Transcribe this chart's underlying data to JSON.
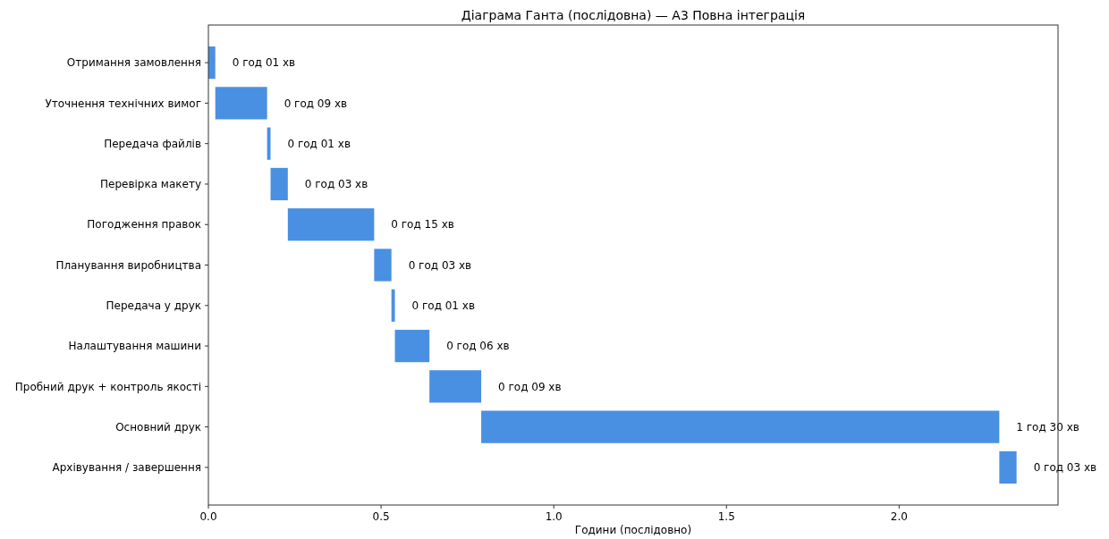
{
  "chart_data": {
    "type": "bar",
    "orientation": "horizontal",
    "title": "Діаграма Ганта (послідовна) — A3 Повна інтеграція",
    "xlabel": "Години (послідовно)",
    "categories": [
      "Отримання замовлення",
      "Уточнення технічних вимог",
      "Передача файлів",
      "Перевірка макету",
      "Погодження правок",
      "Планування виробництва",
      "Передача у друк",
      "Налаштування машини",
      "Пробний друк + контроль якості",
      "Основний друк",
      "Архівування / завершення"
    ],
    "base": [
      0,
      0.02,
      0.17,
      0.18,
      0.23,
      0.48,
      0.53,
      0.54,
      0.64,
      0.79,
      2.29
    ],
    "values": [
      0.02,
      0.15,
      0.01,
      0.05,
      0.25,
      0.05,
      0.01,
      0.1,
      0.15,
      1.5,
      0.05
    ],
    "value_labels": [
      "0 год 01 хв",
      "0 год 09 хв",
      "0 год 01 хв",
      "0 год 03 хв",
      "0 год 15 хв",
      "0 год 03 хв",
      "0 год 01 хв",
      "0 год 06 хв",
      "0 год 09 хв",
      "1 год 30 хв",
      "0 год 03 хв"
    ],
    "color": "#4a90e2",
    "xlim": [
      0,
      2.46
    ],
    "xticks": [
      {
        "value": 0,
        "label": "0.0"
      },
      {
        "value": 0.5,
        "label": "0.5"
      },
      {
        "value": 1,
        "label": "1.0"
      },
      {
        "value": 1.5,
        "label": "1.5"
      },
      {
        "value": 2,
        "label": "2.0"
      }
    ],
    "grid": false
  }
}
